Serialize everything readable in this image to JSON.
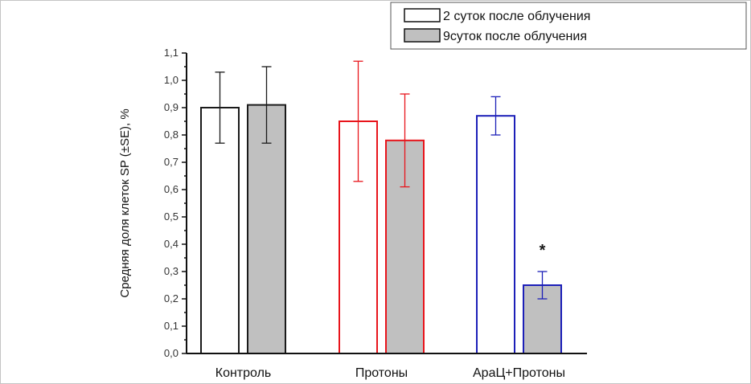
{
  "chart_data": {
    "type": "bar",
    "title": "",
    "xlabel": "",
    "ylabel": "Средняя доля клеток SP (±SE), %",
    "ylim": [
      0,
      1.1
    ],
    "yticks": [
      "0,0",
      "0,1",
      "0,2",
      "0,3",
      "0,4",
      "0,5",
      "0,6",
      "0,7",
      "0,8",
      "0,9",
      "1,0",
      "1,1"
    ],
    "grid": false,
    "legend_position": "top-right",
    "categories": [
      "Контроль",
      "Протоны",
      "АраЦ+Протоны"
    ],
    "category_colors": [
      "#1a1a1a",
      "#e8141b",
      "#1c1fb8"
    ],
    "series": [
      {
        "name": "2 суток после облучения",
        "fill": "#ffffff",
        "values": [
          0.9,
          0.85,
          0.87
        ],
        "errors": [
          0.13,
          0.22,
          0.07
        ]
      },
      {
        "name": "9суток после облучения",
        "fill": "#c0c0c0",
        "values": [
          0.91,
          0.78,
          0.25
        ],
        "errors": [
          0.14,
          0.17,
          0.05
        ]
      }
    ],
    "annotations": [
      {
        "text": "*",
        "category": "АраЦ+Протоны",
        "series": "9суток после облучения"
      }
    ]
  }
}
